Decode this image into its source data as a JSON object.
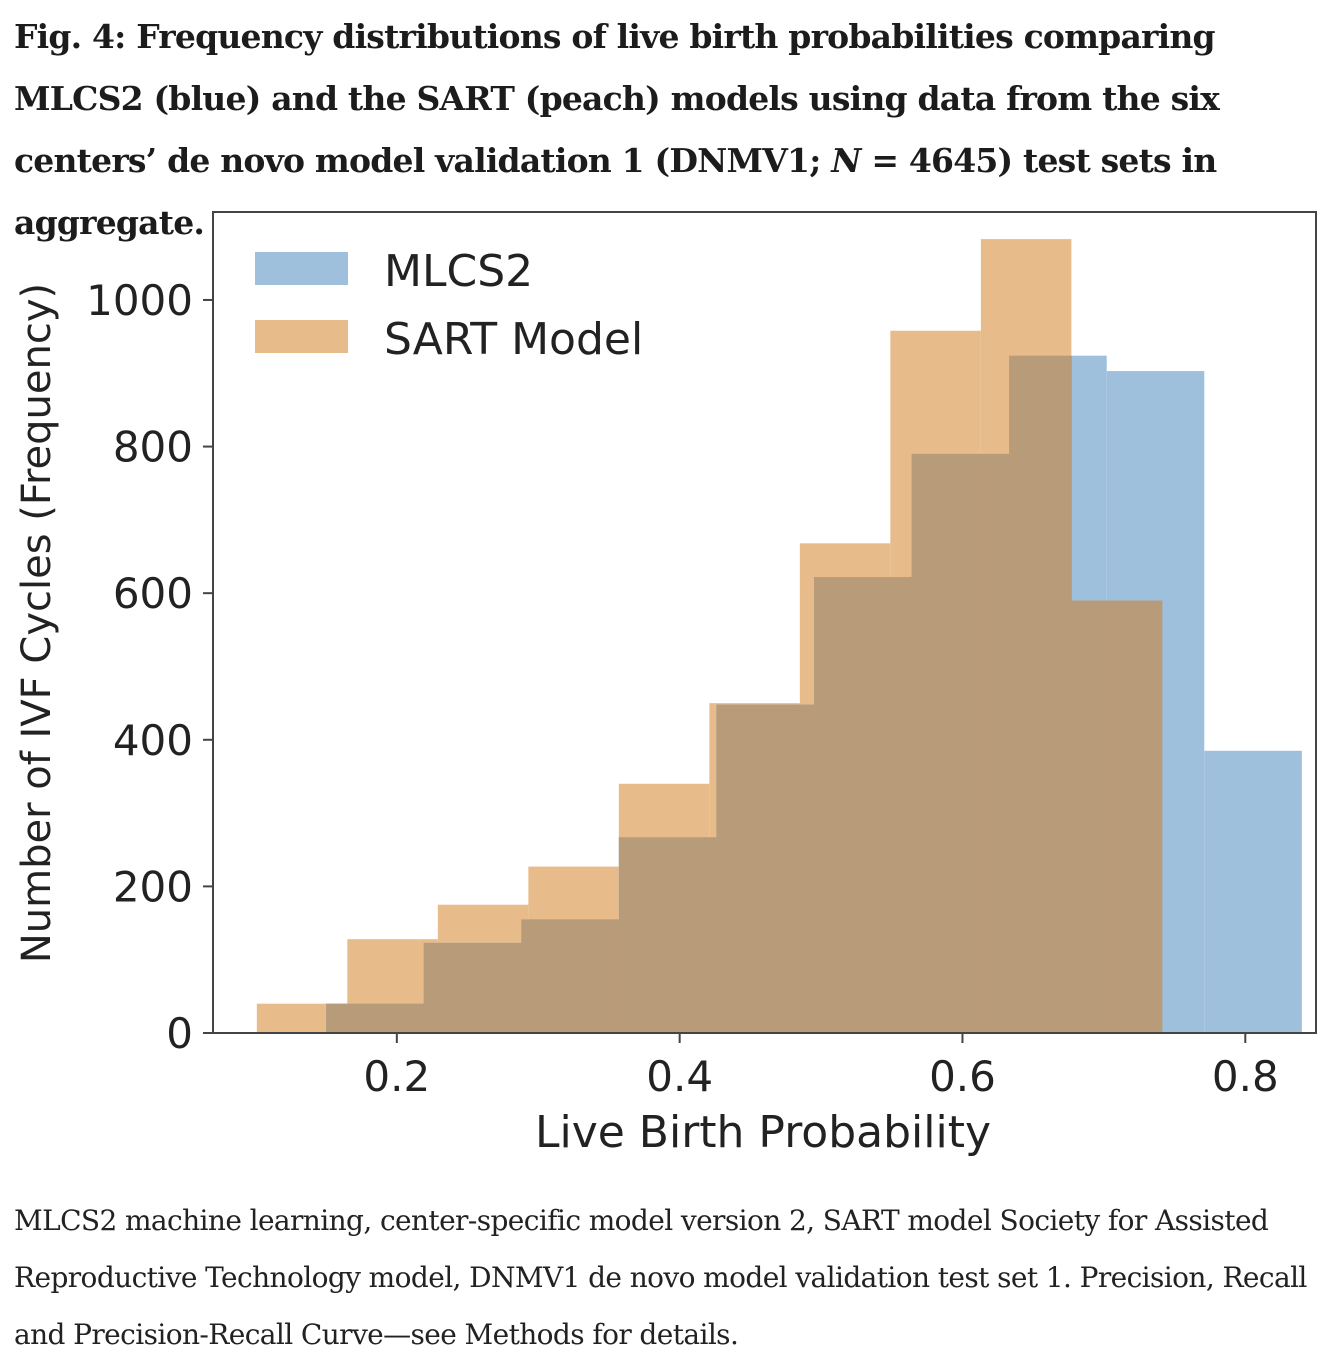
{
  "figure": {
    "title_part1": "Fig. 4: Frequency distributions of live birth probabilities comparing MLCS2 (blue) and the SART (peach) models using data from the six centers’ de novo model validation 1 (DNMV1; ",
    "title_italic": "N",
    "title_part2": " = 4645) test sets in aggregate.",
    "caption": "MLCS2 machine learning, center-specific model version 2, SART model Society for Assisted Reproductive Technology model, DNMV1 de novo model validation test set 1. Precision, Recall and Precision-Recall Curve—see Methods for details."
  },
  "chart_data": {
    "type": "histogram",
    "xlabel": "Live Birth Probability",
    "ylabel": "Number of IVF Cycles (Frequency)",
    "xlim": [
      0.07,
      0.85
    ],
    "ylim": [
      0,
      1120
    ],
    "xticks": [
      0.2,
      0.4,
      0.6,
      0.8
    ],
    "xtick_labels": [
      "0.2",
      "0.4",
      "0.6",
      "0.8"
    ],
    "yticks": [
      0,
      200,
      400,
      600,
      800,
      1000
    ],
    "ytick_labels": [
      "0",
      "200",
      "400",
      "600",
      "800",
      "1000"
    ],
    "grid": false,
    "legend_position": "top-left",
    "overlap_color": "#b89b78",
    "series": [
      {
        "name": "SART Model",
        "color": "#e8bc8a",
        "bin_edges": [
          0.101,
          0.165,
          0.229,
          0.293,
          0.357,
          0.421,
          0.485,
          0.549,
          0.613,
          0.677,
          0.741
        ],
        "values": [
          40,
          128,
          175,
          227,
          340,
          450,
          668,
          958,
          1083,
          590
        ]
      },
      {
        "name": "MLCS2",
        "color": "#9fc0dd",
        "bin_edges": [
          0.15,
          0.219,
          0.288,
          0.357,
          0.426,
          0.495,
          0.564,
          0.633,
          0.702,
          0.771,
          0.84
        ],
        "values": [
          40,
          123,
          155,
          267,
          448,
          622,
          790,
          924,
          903,
          385
        ]
      }
    ]
  }
}
